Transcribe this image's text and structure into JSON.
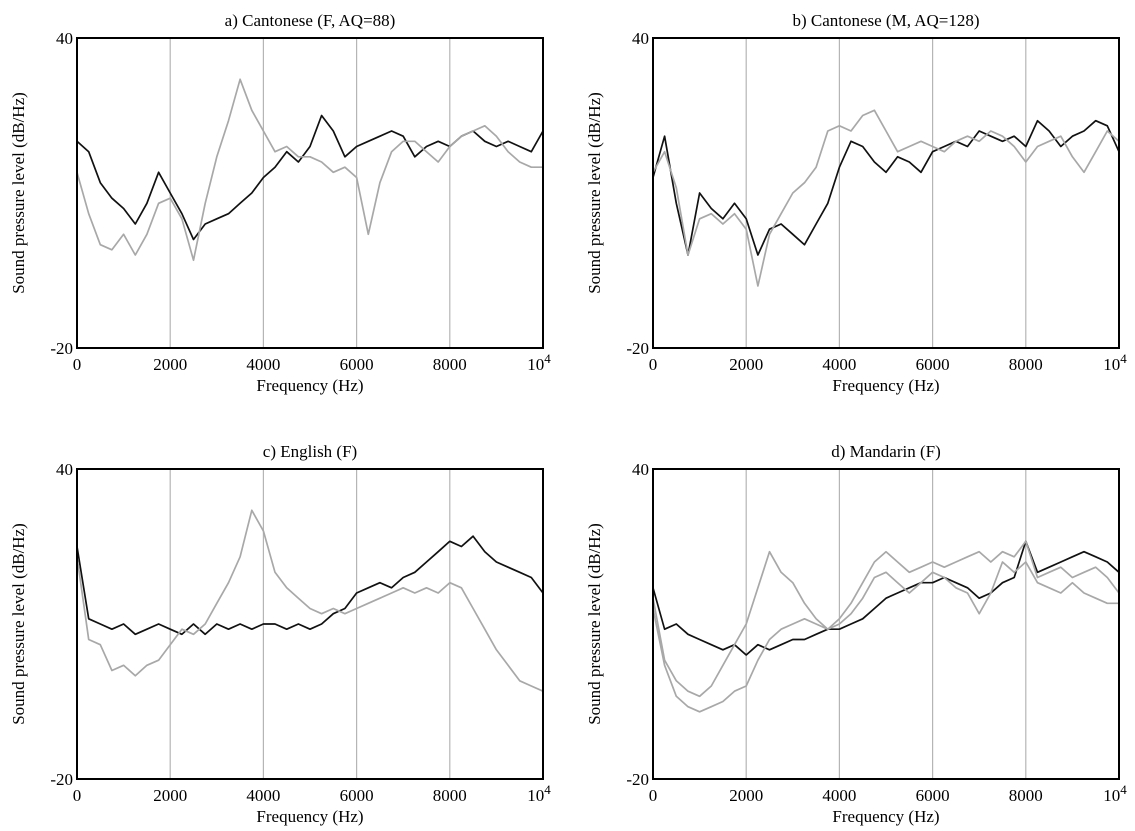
{
  "chart_data": [
    {
      "type": "line",
      "title": "a) Cantonese (F, AQ=88)",
      "xlabel": "Frequency (Hz)",
      "ylabel": "Sound pressure level (dB/Hz)",
      "xlim": [
        0,
        10000
      ],
      "ylim": [
        -20,
        40
      ],
      "xticks": [
        "0",
        "2000",
        "4000",
        "6000",
        "8000",
        "10"
      ],
      "xtick_sup": "4",
      "yticks": [
        "-20",
        "40"
      ],
      "vgrid": [
        2000,
        4000,
        6000,
        8000
      ],
      "series": [
        {
          "color": "#111111",
          "x": [
            0,
            250,
            500,
            750,
            1000,
            1250,
            1500,
            1750,
            2000,
            2250,
            2500,
            2750,
            3000,
            3250,
            3500,
            3750,
            4000,
            4250,
            4500,
            4750,
            5000,
            5250,
            5500,
            5750,
            6000,
            6250,
            6500,
            6750,
            7000,
            7250,
            7500,
            7750,
            8000,
            8250,
            8500,
            8750,
            9000,
            9250,
            9500,
            9750,
            10000
          ],
          "y": [
            20,
            18,
            12,
            9,
            7,
            4,
            8,
            14,
            10,
            6,
            1,
            4,
            5,
            6,
            8,
            10,
            13,
            15,
            18,
            16,
            19,
            25,
            22,
            17,
            19,
            20,
            21,
            22,
            21,
            17,
            19,
            20,
            19,
            21,
            22,
            20,
            19,
            20,
            19,
            18,
            22
          ]
        },
        {
          "color": "#a8a8a8",
          "x": [
            0,
            250,
            500,
            750,
            1000,
            1250,
            1500,
            1750,
            2000,
            2250,
            2500,
            2750,
            3000,
            3250,
            3500,
            3750,
            4000,
            4250,
            4500,
            4750,
            5000,
            5250,
            5500,
            5750,
            6000,
            6250,
            6500,
            6750,
            7000,
            7250,
            7500,
            7750,
            8000,
            8250,
            8500,
            8750,
            9000,
            9250,
            9500,
            9750,
            10000
          ],
          "y": [
            14,
            6,
            0,
            -1,
            2,
            -2,
            2,
            8,
            9,
            5,
            -3,
            8,
            17,
            24,
            32,
            26,
            22,
            18,
            19,
            17,
            17,
            16,
            14,
            15,
            13,
            2,
            12,
            18,
            20,
            20,
            18,
            16,
            19,
            21,
            22,
            23,
            21,
            18,
            16,
            15,
            15
          ]
        }
      ]
    },
    {
      "type": "line",
      "title": "b) Cantonese (M, AQ=128)",
      "xlabel": "Frequency (Hz)",
      "ylabel": "Sound pressure level (dB/Hz)",
      "xlim": [
        0,
        10000
      ],
      "ylim": [
        -20,
        40
      ],
      "xticks": [
        "0",
        "2000",
        "4000",
        "6000",
        "8000",
        "10"
      ],
      "xtick_sup": "4",
      "yticks": [
        "-20",
        "40"
      ],
      "vgrid": [
        2000,
        4000,
        6000,
        8000
      ],
      "series": [
        {
          "color": "#111111",
          "x": [
            0,
            250,
            500,
            750,
            1000,
            1250,
            1500,
            1750,
            2000,
            2250,
            2500,
            2750,
            3000,
            3250,
            3500,
            3750,
            4000,
            4250,
            4500,
            4750,
            5000,
            5250,
            5500,
            5750,
            6000,
            6250,
            6500,
            6750,
            7000,
            7250,
            7500,
            7750,
            8000,
            8250,
            8500,
            8750,
            9000,
            9250,
            9500,
            9750,
            10000
          ],
          "y": [
            13,
            21,
            8,
            -2,
            10,
            7,
            5,
            8,
            5,
            -2,
            3,
            4,
            2,
            0,
            4,
            8,
            15,
            20,
            19,
            16,
            14,
            17,
            16,
            14,
            18,
            19,
            20,
            19,
            22,
            21,
            20,
            21,
            19,
            24,
            22,
            19,
            21,
            22,
            24,
            23,
            18
          ]
        },
        {
          "color": "#a8a8a8",
          "x": [
            0,
            250,
            500,
            750,
            1000,
            1250,
            1500,
            1750,
            2000,
            2250,
            2500,
            2750,
            3000,
            3250,
            3500,
            3750,
            4000,
            4250,
            4500,
            4750,
            5000,
            5250,
            5500,
            5750,
            6000,
            6250,
            6500,
            6750,
            7000,
            7250,
            7500,
            7750,
            8000,
            8250,
            8500,
            8750,
            9000,
            9250,
            9500,
            9750,
            10000
          ],
          "y": [
            14,
            18,
            11,
            -2,
            5,
            6,
            4,
            6,
            3,
            -8,
            2,
            6,
            10,
            12,
            15,
            22,
            23,
            22,
            25,
            26,
            22,
            18,
            19,
            20,
            19,
            18,
            20,
            21,
            20,
            22,
            21,
            19,
            16,
            19,
            20,
            21,
            17,
            14,
            18,
            22,
            20
          ]
        }
      ]
    },
    {
      "type": "line",
      "title": "c) English (F)",
      "xlabel": "Frequency (Hz)",
      "ylabel": "Sound pressure level (dB/Hz)",
      "xlim": [
        0,
        10000
      ],
      "ylim": [
        -20,
        40
      ],
      "xticks": [
        "0",
        "2000",
        "4000",
        "6000",
        "8000",
        "10"
      ],
      "xtick_sup": "4",
      "yticks": [
        "-20",
        "40"
      ],
      "vgrid": [
        2000,
        4000,
        6000,
        8000
      ],
      "series": [
        {
          "color": "#111111",
          "x": [
            0,
            250,
            500,
            750,
            1000,
            1250,
            1500,
            1750,
            2000,
            2250,
            2500,
            2750,
            3000,
            3250,
            3500,
            3750,
            4000,
            4250,
            4500,
            4750,
            5000,
            5250,
            5500,
            5750,
            6000,
            6250,
            6500,
            6750,
            7000,
            7250,
            7500,
            7750,
            8000,
            8250,
            8500,
            8750,
            9000,
            9250,
            9500,
            9750,
            10000
          ],
          "y": [
            25,
            11,
            10,
            9,
            10,
            8,
            9,
            10,
            9,
            8,
            10,
            8,
            10,
            9,
            10,
            9,
            10,
            10,
            9,
            10,
            9,
            10,
            12,
            13,
            16,
            17,
            18,
            17,
            19,
            20,
            22,
            24,
            26,
            25,
            27,
            24,
            22,
            21,
            20,
            19,
            16
          ]
        },
        {
          "color": "#a8a8a8",
          "x": [
            0,
            250,
            500,
            750,
            1000,
            1250,
            1500,
            1750,
            2000,
            2250,
            2500,
            2750,
            3000,
            3250,
            3500,
            3750,
            4000,
            4250,
            4500,
            4750,
            5000,
            5250,
            5500,
            5750,
            6000,
            6250,
            6500,
            6750,
            7000,
            7250,
            7500,
            7750,
            8000,
            8250,
            8500,
            8750,
            9000,
            9250,
            9500,
            9750,
            10000
          ],
          "y": [
            23,
            7,
            6,
            1,
            2,
            0,
            2,
            3,
            6,
            9,
            8,
            10,
            14,
            18,
            23,
            32,
            28,
            20,
            17,
            15,
            13,
            12,
            13,
            12,
            13,
            14,
            15,
            16,
            17,
            16,
            17,
            16,
            18,
            17,
            13,
            9,
            5,
            2,
            -1,
            -2,
            -3
          ]
        }
      ]
    },
    {
      "type": "line",
      "title": "d) Mandarin (F)",
      "xlabel": "Frequency (Hz)",
      "ylabel": "Sound pressure level (dB/Hz)",
      "xlim": [
        0,
        10000
      ],
      "ylim": [
        -20,
        40
      ],
      "xticks": [
        "0",
        "2000",
        "4000",
        "6000",
        "8000",
        "10"
      ],
      "xtick_sup": "4",
      "yticks": [
        "-20",
        "40"
      ],
      "vgrid": [
        2000,
        4000,
        6000,
        8000
      ],
      "series": [
        {
          "color": "#111111",
          "x": [
            0,
            250,
            500,
            750,
            1000,
            1250,
            1500,
            1750,
            2000,
            2250,
            2500,
            2750,
            3000,
            3250,
            3500,
            3750,
            4000,
            4250,
            4500,
            4750,
            5000,
            5250,
            5500,
            5750,
            6000,
            6250,
            6500,
            6750,
            7000,
            7250,
            7500,
            7750,
            8000,
            8250,
            8500,
            8750,
            9000,
            9250,
            9500,
            9750,
            10000
          ],
          "y": [
            17,
            9,
            10,
            8,
            7,
            6,
            5,
            6,
            4,
            6,
            5,
            6,
            7,
            7,
            8,
            9,
            9,
            10,
            11,
            13,
            15,
            16,
            17,
            18,
            18,
            19,
            18,
            17,
            15,
            16,
            18,
            19,
            26,
            20,
            21,
            22,
            23,
            24,
            23,
            22,
            20
          ]
        },
        {
          "color": "#a8a8a8",
          "x": [
            0,
            250,
            500,
            750,
            1000,
            1250,
            1500,
            1750,
            2000,
            2250,
            2500,
            2750,
            3000,
            3250,
            3500,
            3750,
            4000,
            4250,
            4500,
            4750,
            5000,
            5250,
            5500,
            5750,
            6000,
            6250,
            6500,
            6750,
            7000,
            7250,
            7500,
            7750,
            8000,
            8250,
            8500,
            8750,
            9000,
            9250,
            9500,
            9750,
            10000
          ],
          "y": [
            13,
            2,
            -4,
            -6,
            -7,
            -6,
            -5,
            -3,
            -2,
            3,
            7,
            9,
            10,
            11,
            10,
            9,
            11,
            14,
            18,
            22,
            24,
            22,
            20,
            21,
            22,
            21,
            22,
            23,
            24,
            22,
            24,
            23,
            26,
            19,
            20,
            21,
            19,
            20,
            21,
            19,
            16
          ]
        },
        {
          "color": "#a8a8a8",
          "x": [
            0,
            250,
            500,
            750,
            1000,
            1250,
            1500,
            1750,
            2000,
            2250,
            2500,
            2750,
            3000,
            3250,
            3500,
            3750,
            4000,
            4250,
            4500,
            4750,
            5000,
            5250,
            5500,
            5750,
            6000,
            6250,
            6500,
            6750,
            7000,
            7250,
            7500,
            7750,
            8000,
            8250,
            8500,
            8750,
            9000,
            9250,
            9500,
            9750,
            10000
          ],
          "y": [
            15,
            3,
            -1,
            -3,
            -4,
            -2,
            2,
            6,
            10,
            17,
            24,
            20,
            18,
            14,
            11,
            9,
            10,
            12,
            15,
            19,
            20,
            18,
            16,
            18,
            20,
            19,
            17,
            16,
            12,
            16,
            22,
            20,
            22,
            18,
            17,
            16,
            18,
            16,
            15,
            14,
            14
          ]
        }
      ]
    }
  ]
}
